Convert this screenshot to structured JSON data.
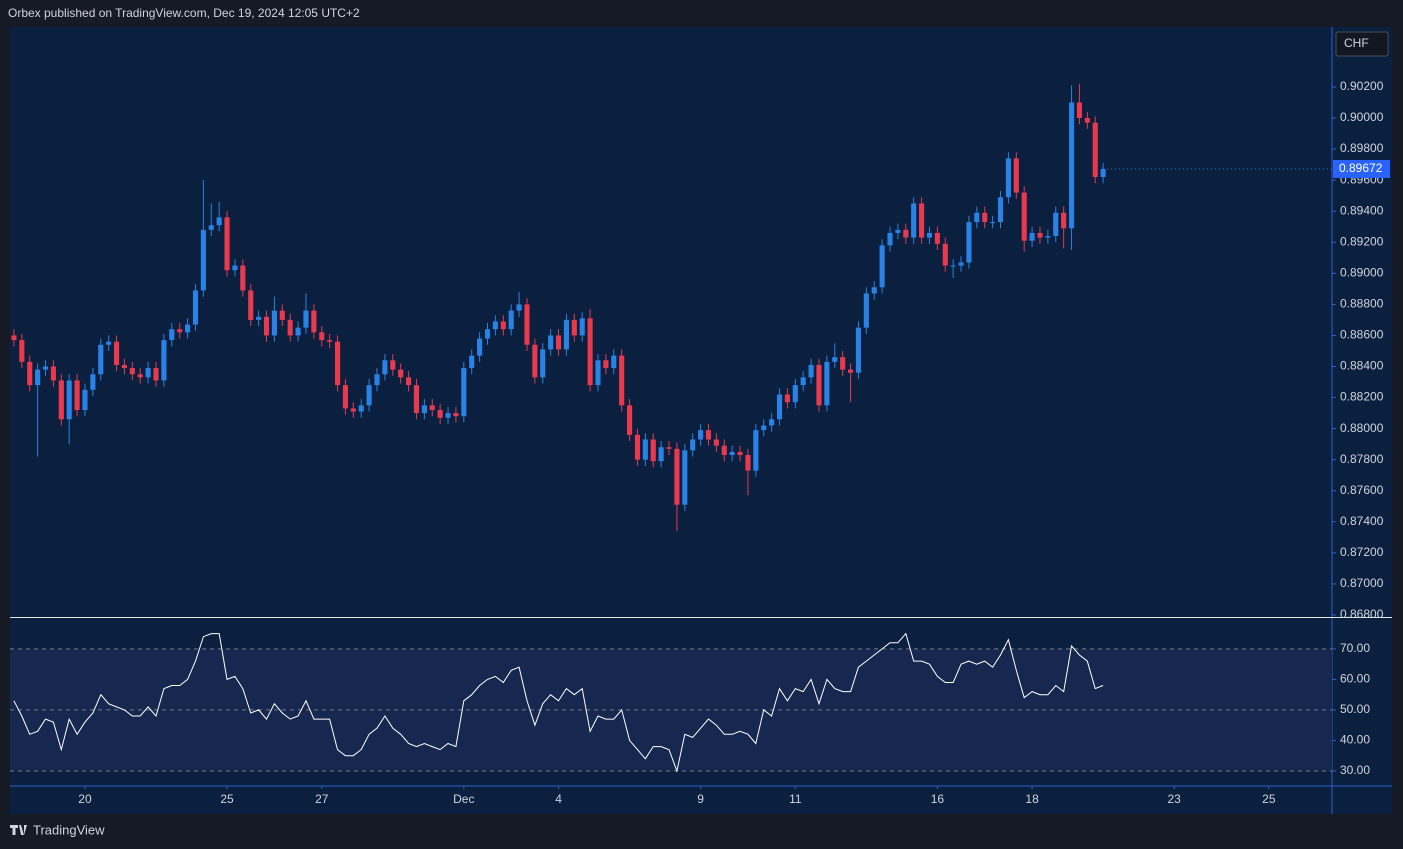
{
  "header": "Orbex published on TradingView.com, Dec 19, 2024 12:05 UTC+2",
  "footer": "TradingView",
  "chart_data": [
    {
      "type": "candlestick",
      "currency": "CHF",
      "up_color": "#2a82e4",
      "down_color": "#e8394f",
      "xlim": [
        -0.5,
        167
      ],
      "ylim": [
        0.86787,
        0.90586
      ],
      "xticks": [
        {
          "value": 9,
          "label": "20"
        },
        {
          "value": 27,
          "label": "25"
        },
        {
          "value": 39,
          "label": "27"
        },
        {
          "value": 57,
          "label": "Dec"
        },
        {
          "value": 69,
          "label": "4"
        },
        {
          "value": 87,
          "label": "9"
        },
        {
          "value": 99,
          "label": "11"
        },
        {
          "value": 117,
          "label": "16"
        },
        {
          "value": 129,
          "label": "18"
        },
        {
          "value": 147,
          "label": "23"
        },
        {
          "value": 159,
          "label": "25"
        }
      ],
      "yticks": [
        {
          "value": 0.868,
          "label": "0.86800"
        },
        {
          "value": 0.87,
          "label": "0.87000"
        },
        {
          "value": 0.872,
          "label": "0.87200"
        },
        {
          "value": 0.874,
          "label": "0.87400"
        },
        {
          "value": 0.876,
          "label": "0.87600"
        },
        {
          "value": 0.878,
          "label": "0.87800"
        },
        {
          "value": 0.88,
          "label": "0.88000"
        },
        {
          "value": 0.882,
          "label": "0.88200"
        },
        {
          "value": 0.884,
          "label": "0.88400"
        },
        {
          "value": 0.886,
          "label": "0.88600"
        },
        {
          "value": 0.888,
          "label": "0.88800"
        },
        {
          "value": 0.89,
          "label": "0.89000"
        },
        {
          "value": 0.892,
          "label": "0.89200"
        },
        {
          "value": 0.894,
          "label": "0.89400"
        },
        {
          "value": 0.896,
          "label": "0.89600"
        },
        {
          "value": 0.898,
          "label": "0.89800"
        },
        {
          "value": 0.9,
          "label": "0.90000"
        },
        {
          "value": 0.902,
          "label": "0.90200"
        }
      ],
      "open": [
        0.886,
        0.8857,
        0.8843,
        0.8828,
        0.8838,
        0.884,
        0.8831,
        0.8806,
        0.8831,
        0.8812,
        0.8825,
        0.8835,
        0.8854,
        0.8856,
        0.8841,
        0.8839,
        0.8835,
        0.8833,
        0.8839,
        0.8831,
        0.8857,
        0.8864,
        0.8862,
        0.8867,
        0.8889,
        0.8928,
        0.8931,
        0.8936,
        0.8902,
        0.8905,
        0.8889,
        0.887,
        0.8872,
        0.886,
        0.8876,
        0.887,
        0.886,
        0.8865,
        0.8876,
        0.8862,
        0.8857,
        0.8856,
        0.8828,
        0.8813,
        0.8811,
        0.8815,
        0.8828,
        0.8835,
        0.8844,
        0.8838,
        0.8833,
        0.8828,
        0.881,
        0.8815,
        0.8812,
        0.8807,
        0.881,
        0.8808,
        0.8839,
        0.8847,
        0.8858,
        0.8864,
        0.8869,
        0.8864,
        0.8876,
        0.888,
        0.8854,
        0.8833,
        0.8851,
        0.886,
        0.8851,
        0.887,
        0.886,
        0.8871,
        0.8828,
        0.8844,
        0.8839,
        0.8847,
        0.8815,
        0.8796,
        0.878,
        0.8793,
        0.8779,
        0.8788,
        0.8787,
        0.8751,
        0.8786,
        0.8793,
        0.8799,
        0.8793,
        0.8789,
        0.8783,
        0.8785,
        0.8783,
        0.8773,
        0.8799,
        0.8802,
        0.8806,
        0.8822,
        0.8817,
        0.8828,
        0.8833,
        0.8841,
        0.8815,
        0.8843,
        0.8846,
        0.8838,
        0.8836,
        0.8865,
        0.8887,
        0.8891,
        0.8918,
        0.8926,
        0.8928,
        0.8923,
        0.8945,
        0.8923,
        0.8926,
        0.8919,
        0.8905,
        0.8905,
        0.8907,
        0.8933,
        0.8939,
        0.8933,
        0.8933,
        0.8949,
        0.8974,
        0.8952,
        0.8921,
        0.8926,
        0.8923,
        0.8924,
        0.8939,
        0.8929,
        0.901,
        0.9,
        0.8997,
        0.8962
      ],
      "high": [
        0.8864,
        0.8861,
        0.8847,
        0.8842,
        0.8844,
        0.8844,
        0.8835,
        0.8835,
        0.8835,
        0.8829,
        0.8839,
        0.8858,
        0.886,
        0.886,
        0.8845,
        0.8843,
        0.8839,
        0.8843,
        0.8843,
        0.8861,
        0.8868,
        0.8868,
        0.8871,
        0.8893,
        0.896,
        0.8945,
        0.8946,
        0.894,
        0.8909,
        0.8909,
        0.8893,
        0.8876,
        0.8876,
        0.8885,
        0.888,
        0.8874,
        0.8869,
        0.8887,
        0.888,
        0.8866,
        0.8861,
        0.886,
        0.8832,
        0.8817,
        0.8819,
        0.8832,
        0.8839,
        0.8848,
        0.8848,
        0.8842,
        0.8837,
        0.8832,
        0.8819,
        0.8819,
        0.8816,
        0.8814,
        0.8814,
        0.8843,
        0.8851,
        0.8862,
        0.8868,
        0.8873,
        0.8873,
        0.888,
        0.8888,
        0.8884,
        0.8858,
        0.8855,
        0.8864,
        0.8864,
        0.8874,
        0.8874,
        0.8875,
        0.8877,
        0.8848,
        0.8848,
        0.8851,
        0.8851,
        0.8819,
        0.88,
        0.8797,
        0.8797,
        0.8792,
        0.8792,
        0.8791,
        0.879,
        0.8797,
        0.8803,
        0.8803,
        0.8797,
        0.8793,
        0.8789,
        0.8789,
        0.8787,
        0.8803,
        0.8806,
        0.881,
        0.8826,
        0.8826,
        0.8832,
        0.8837,
        0.8845,
        0.8845,
        0.8847,
        0.8855,
        0.885,
        0.8842,
        0.8869,
        0.8891,
        0.8895,
        0.8922,
        0.893,
        0.8932,
        0.8932,
        0.8949,
        0.8949,
        0.893,
        0.893,
        0.8923,
        0.8909,
        0.8911,
        0.8937,
        0.8943,
        0.8943,
        0.8937,
        0.8953,
        0.8978,
        0.8978,
        0.8956,
        0.893,
        0.893,
        0.8928,
        0.8943,
        0.8943,
        0.9021,
        0.9022,
        0.9004,
        0.9001,
        0.8971
      ],
      "low": [
        0.8853,
        0.8839,
        0.8824,
        0.8782,
        0.8834,
        0.8827,
        0.8802,
        0.879,
        0.8808,
        0.8808,
        0.8821,
        0.8831,
        0.885,
        0.8837,
        0.8835,
        0.8831,
        0.8829,
        0.8829,
        0.8827,
        0.8827,
        0.8853,
        0.8858,
        0.8858,
        0.8863,
        0.8885,
        0.8924,
        0.8927,
        0.8898,
        0.8898,
        0.8885,
        0.8866,
        0.8866,
        0.8856,
        0.8856,
        0.8866,
        0.8856,
        0.8856,
        0.8861,
        0.8858,
        0.8853,
        0.8852,
        0.8824,
        0.8809,
        0.8807,
        0.8807,
        0.8811,
        0.8824,
        0.8831,
        0.8834,
        0.8829,
        0.8824,
        0.8806,
        0.8806,
        0.8808,
        0.8803,
        0.8803,
        0.8804,
        0.8804,
        0.8835,
        0.8843,
        0.8854,
        0.886,
        0.886,
        0.886,
        0.8872,
        0.885,
        0.8829,
        0.8829,
        0.8847,
        0.8847,
        0.8847,
        0.8856,
        0.8856,
        0.8824,
        0.8824,
        0.8835,
        0.8835,
        0.8811,
        0.8792,
        0.8776,
        0.8776,
        0.8775,
        0.8775,
        0.8783,
        0.8734,
        0.8747,
        0.8782,
        0.8789,
        0.8789,
        0.8785,
        0.8779,
        0.8779,
        0.8779,
        0.8757,
        0.8769,
        0.8795,
        0.8798,
        0.8802,
        0.8813,
        0.8813,
        0.8824,
        0.8829,
        0.8811,
        0.8811,
        0.8839,
        0.8834,
        0.8817,
        0.8832,
        0.8861,
        0.8883,
        0.8887,
        0.8914,
        0.8922,
        0.8919,
        0.8919,
        0.8919,
        0.8919,
        0.8915,
        0.8901,
        0.8897,
        0.8901,
        0.8903,
        0.8929,
        0.8929,
        0.8929,
        0.8929,
        0.8945,
        0.8948,
        0.8914,
        0.8917,
        0.8919,
        0.8919,
        0.892,
        0.8916,
        0.8915,
        0.8996,
        0.8993,
        0.8958,
        0.8958
      ],
      "close": [
        0.8857,
        0.8843,
        0.8828,
        0.8838,
        0.884,
        0.8831,
        0.8806,
        0.8831,
        0.8812,
        0.8825,
        0.8835,
        0.8854,
        0.8856,
        0.8841,
        0.8839,
        0.8835,
        0.8833,
        0.8839,
        0.8831,
        0.8857,
        0.8864,
        0.8862,
        0.8867,
        0.8889,
        0.8928,
        0.8931,
        0.8936,
        0.8902,
        0.8905,
        0.8889,
        0.887,
        0.8872,
        0.886,
        0.8876,
        0.887,
        0.886,
        0.8865,
        0.8876,
        0.8862,
        0.8857,
        0.8856,
        0.8828,
        0.8813,
        0.8811,
        0.8815,
        0.8828,
        0.8835,
        0.8844,
        0.8838,
        0.8833,
        0.8828,
        0.881,
        0.8815,
        0.8812,
        0.8807,
        0.881,
        0.8808,
        0.8839,
        0.8847,
        0.8858,
        0.8864,
        0.8869,
        0.8864,
        0.8876,
        0.888,
        0.8854,
        0.8833,
        0.8851,
        0.886,
        0.8851,
        0.887,
        0.886,
        0.8871,
        0.8828,
        0.8844,
        0.8839,
        0.8847,
        0.8815,
        0.8796,
        0.878,
        0.8793,
        0.8779,
        0.8788,
        0.8787,
        0.8751,
        0.8786,
        0.8793,
        0.8799,
        0.8793,
        0.8789,
        0.8783,
        0.8785,
        0.8783,
        0.8773,
        0.8799,
        0.8802,
        0.8806,
        0.8822,
        0.8817,
        0.8828,
        0.8833,
        0.8841,
        0.8815,
        0.8843,
        0.8846,
        0.8838,
        0.8836,
        0.8865,
        0.8887,
        0.8891,
        0.8918,
        0.8926,
        0.8928,
        0.8923,
        0.8945,
        0.8923,
        0.8926,
        0.8919,
        0.8905,
        0.8905,
        0.8907,
        0.8933,
        0.8939,
        0.8933,
        0.8933,
        0.8949,
        0.8974,
        0.8952,
        0.8921,
        0.8926,
        0.8923,
        0.8924,
        0.8939,
        0.8929,
        0.901,
        0.9,
        0.8997,
        0.8962,
        0.89672
      ]
    },
    {
      "type": "line",
      "color": "#ffffff",
      "band_color": "#16284f",
      "levels": [
        70,
        50,
        30
      ],
      "ylim": [
        25.4,
        79.8
      ],
      "yticks": [
        {
          "value": 30,
          "label": "30.00"
        },
        {
          "value": 40,
          "label": "40.00"
        },
        {
          "value": 50,
          "label": "50.00"
        },
        {
          "value": 60,
          "label": "60.00"
        },
        {
          "value": 70,
          "label": "70.00"
        }
      ],
      "values": [
        53,
        48,
        42,
        43,
        47,
        46,
        37,
        47,
        42,
        46,
        49,
        55,
        52,
        51,
        50,
        48,
        48,
        51,
        48,
        57,
        58,
        58,
        60,
        66,
        74,
        75,
        75,
        60,
        61,
        57,
        49,
        50,
        47,
        52,
        49,
        47,
        48,
        53,
        47,
        47,
        47,
        37,
        35,
        35,
        37,
        42,
        44,
        48,
        44,
        42,
        39,
        38,
        39,
        38,
        37,
        39,
        38,
        53,
        55,
        58,
        60,
        61,
        59,
        63,
        64,
        53,
        45,
        52,
        55,
        53,
        57,
        55,
        57,
        43,
        48,
        47,
        47,
        50,
        40,
        37,
        34,
        38,
        38,
        37,
        30,
        42,
        41,
        44,
        47,
        45,
        42,
        42,
        43,
        42,
        39,
        50,
        48,
        57,
        53,
        57,
        56,
        60,
        52,
        60,
        57,
        56,
        56,
        64,
        66,
        68,
        70,
        72,
        72,
        75,
        66,
        66,
        65,
        61,
        59,
        59,
        65,
        66,
        65,
        66,
        64,
        68,
        73,
        63,
        54,
        56,
        55,
        55,
        58,
        56,
        71,
        68,
        66,
        57,
        58
      ]
    }
  ]
}
